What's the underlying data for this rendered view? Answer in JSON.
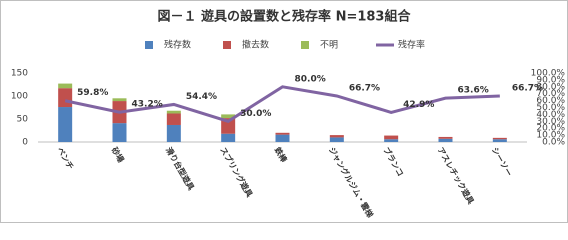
{
  "chart_data": {
    "type": "bar_line",
    "title": "図－１ 遊具の設置数と残存率 N=183組合",
    "categories": [
      "ベンチ",
      "砂場",
      "滑り台型遊具",
      "スプリング遊具",
      "鉄棒",
      "ジャングルジム・雲梯",
      "ブランコ",
      "アスレチック遊具",
      "シーソー"
    ],
    "series": [
      {
        "name": "残存数",
        "color": "#4f81bd",
        "values": [
          76,
          41,
          37,
          18,
          16,
          10,
          6,
          7,
          6
        ]
      },
      {
        "name": "撤去数",
        "color": "#c0504d",
        "values": [
          41,
          48,
          25,
          34,
          4,
          5,
          8,
          4,
          3
        ]
      },
      {
        "name": "不明",
        "color": "#9bbb59",
        "values": [
          10,
          6,
          6,
          8,
          0,
          0,
          0,
          0,
          0
        ]
      },
      {
        "name": "残存率",
        "color": "#8064a2",
        "axis": "y2",
        "values": [
          59.8,
          43.2,
          54.4,
          30.0,
          80.0,
          66.7,
          42.9,
          63.6,
          66.7
        ],
        "value_labels": [
          "59.8%",
          "43.2%",
          "54.4%",
          "30.0%",
          "80.0%",
          "66.7%",
          "42.9%",
          "63.6%",
          "66.7%"
        ]
      }
    ],
    "ylim": [
      0,
      150
    ],
    "yticks": [
      0,
      50,
      100,
      150
    ],
    "y2lim": [
      0,
      100
    ],
    "y2ticks": [
      {
        "value": 0,
        "label": "0.0%"
      },
      {
        "value": 10,
        "label": "10.0%"
      },
      {
        "value": 20,
        "label": "20.0%"
      },
      {
        "value": 30,
        "label": "30.0%"
      },
      {
        "value": 40,
        "label": "40.0%"
      },
      {
        "value": 50,
        "label": "50.0%"
      },
      {
        "value": 60,
        "label": "60.0%"
      },
      {
        "value": 70,
        "label": "70.0%"
      },
      {
        "value": 80,
        "label": "80.0%"
      },
      {
        "value": 90,
        "label": "90.0%"
      },
      {
        "value": 100,
        "label": "100.0%"
      }
    ],
    "legend": "top"
  }
}
